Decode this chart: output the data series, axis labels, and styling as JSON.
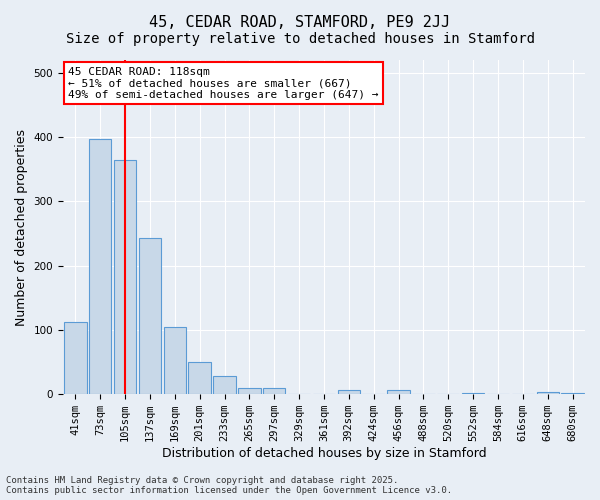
{
  "title": "45, CEDAR ROAD, STAMFORD, PE9 2JJ",
  "subtitle": "Size of property relative to detached houses in Stamford",
  "xlabel": "Distribution of detached houses by size in Stamford",
  "ylabel": "Number of detached properties",
  "categories": [
    "41sqm",
    "73sqm",
    "105sqm",
    "137sqm",
    "169sqm",
    "201sqm",
    "233sqm",
    "265sqm",
    "297sqm",
    "329sqm",
    "361sqm",
    "392sqm",
    "424sqm",
    "456sqm",
    "488sqm",
    "520sqm",
    "552sqm",
    "584sqm",
    "616sqm",
    "648sqm",
    "680sqm"
  ],
  "values": [
    112,
    397,
    365,
    243,
    104,
    50,
    29,
    9,
    9,
    0,
    0,
    6,
    0,
    7,
    0,
    0,
    2,
    0,
    0,
    3,
    2
  ],
  "bar_color": "#c8d8e8",
  "bar_edge_color": "#5b9bd5",
  "vline_x": 2.0,
  "vline_color": "red",
  "annotation_text": "45 CEDAR ROAD: 118sqm\n← 51% of detached houses are smaller (667)\n49% of semi-detached houses are larger (647) →",
  "annotation_box_color": "white",
  "annotation_box_edge_color": "red",
  "ylim": [
    0,
    520
  ],
  "background_color": "#e8eef5",
  "plot_background_color": "#e8eef5",
  "footer": "Contains HM Land Registry data © Crown copyright and database right 2025.\nContains public sector information licensed under the Open Government Licence v3.0.",
  "title_fontsize": 11,
  "subtitle_fontsize": 10,
  "xlabel_fontsize": 9,
  "ylabel_fontsize": 9,
  "tick_fontsize": 7.5,
  "annotation_fontsize": 8,
  "footer_fontsize": 6.5
}
